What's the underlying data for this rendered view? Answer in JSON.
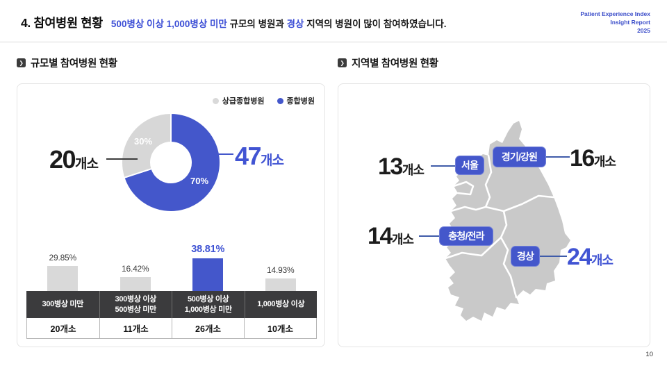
{
  "header": {
    "title": "4. 참여병원 현황",
    "subtitle_parts": [
      {
        "text": "500병상 이상 1,000병상 미만",
        "highlight": true
      },
      {
        "text": " 규모의 병원과 ",
        "highlight": false
      },
      {
        "text": "경상",
        "highlight": true
      },
      {
        "text": " 지역의 병원이 많이 참여하였습니다.",
        "highlight": false
      }
    ],
    "brand": [
      "Patient Experience Index",
      "Insight Report",
      "2025"
    ]
  },
  "left_panel": {
    "title": "규모별 참여병원 현황"
  },
  "right_panel": {
    "title": "지역별 참여병원 현황"
  },
  "page_number": "10",
  "colors": {
    "accent_blue": "#4457CB",
    "text_blue": "#3D4FD6",
    "slice_gray": "#D9D9D9",
    "map_gray": "#C9C9C9",
    "table_header_bg": "#3B3B3D"
  },
  "chart_data": [
    {
      "type": "pie",
      "title": "규모별 참여병원 현황",
      "donut": true,
      "legend": [
        "상급종합병원",
        "종합병원"
      ],
      "legend_position": "top-right",
      "labels": [
        "종합병원",
        "상급종합병원"
      ],
      "values": [
        70,
        30
      ],
      "percent_labels": [
        "70%",
        "30%"
      ],
      "counts": [
        47,
        20
      ],
      "callouts": [
        {
          "number": "47",
          "unit": "개소",
          "highlight": true
        },
        {
          "number": "20",
          "unit": "개소",
          "highlight": false
        }
      ],
      "colors": [
        "#4457CB",
        "#D9D9D9"
      ],
      "start_at": "top",
      "direction": "clockwise"
    },
    {
      "type": "bar",
      "categories": [
        "300병상 미만",
        "300병상 이상\n500병상 미만",
        "500병상 이상\n1,000병상 미만",
        "1,000병상 이상"
      ],
      "values": [
        29.85,
        16.42,
        38.81,
        14.93
      ],
      "percent_labels": [
        "29.85%",
        "16.42%",
        "38.81%",
        "14.93%"
      ],
      "counts": [
        "20개소",
        "11개소",
        "26개소",
        "10개소"
      ],
      "highlight_index": 2,
      "bar_colors": [
        "#D9D9D9",
        "#D9D9D9",
        "#4457CB",
        "#D9D9D9"
      ],
      "ylabel": "%"
    },
    {
      "type": "map",
      "title": "지역별 참여병원 현황",
      "regions": [
        {
          "name": "서울",
          "count": 13,
          "count_label": "13",
          "unit": "개소",
          "highlight": false
        },
        {
          "name": "경기/강원",
          "count": 16,
          "count_label": "16",
          "unit": "개소",
          "highlight": false
        },
        {
          "name": "충청/전라",
          "count": 14,
          "count_label": "14",
          "unit": "개소",
          "highlight": false
        },
        {
          "name": "경상",
          "count": 24,
          "count_label": "24",
          "unit": "개소",
          "highlight": true
        }
      ]
    }
  ]
}
